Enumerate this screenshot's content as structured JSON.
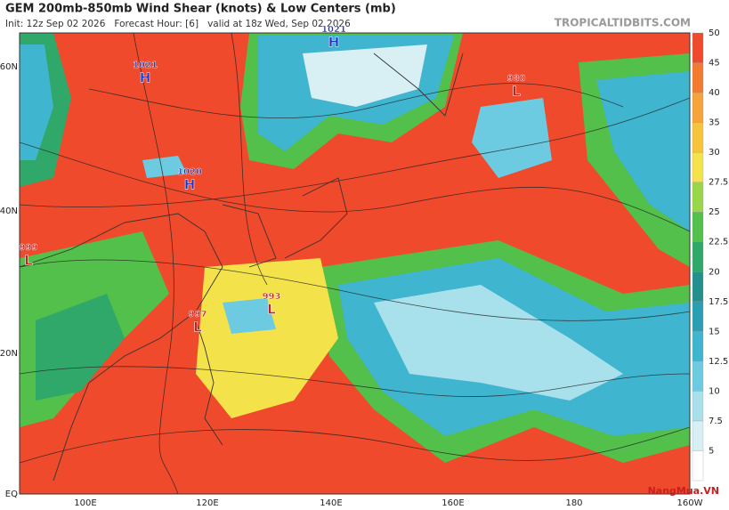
{
  "header": {
    "title": "GEM 200mb-850mb Wind Shear (knots) & Low Centers (mb)",
    "subtitle": "Init: 12z Sep 02 2026   Forecast Hour: [6]   valid at 18z Wed, Sep 02 2026",
    "source": "TROPICALTIDBITS.COM"
  },
  "map": {
    "lat_labels": [
      "60N",
      "40N",
      "20N",
      "EQ"
    ],
    "lon_labels": [
      "100E",
      "120E",
      "140E",
      "160E",
      "180",
      "160W"
    ],
    "centers": [
      {
        "type": "H",
        "pressure": "1021"
      },
      {
        "type": "H",
        "pressure": "1021"
      },
      {
        "type": "H",
        "pressure": "1020"
      },
      {
        "type": "L",
        "pressure": "980"
      },
      {
        "type": "L",
        "pressure": "999"
      },
      {
        "type": "L",
        "pressure": "993"
      },
      {
        "type": "L",
        "pressure": "997"
      }
    ]
  },
  "colorbar": {
    "ticks": [
      5,
      7.5,
      10,
      12.5,
      15,
      17.5,
      20,
      22.5,
      25,
      27.5,
      30,
      35,
      40,
      45,
      50
    ],
    "colors": [
      "#ffffff",
      "#d8f0f4",
      "#a8e0ec",
      "#6ccbe0",
      "#3fb5cf",
      "#2a9fb4",
      "#23908e",
      "#2fa86a",
      "#52c04a",
      "#9ad64a",
      "#f4e24a",
      "#f6c43c",
      "#f7a23a",
      "#f47a30",
      "#f04a2c"
    ]
  },
  "watermark": "NangMua.VN"
}
